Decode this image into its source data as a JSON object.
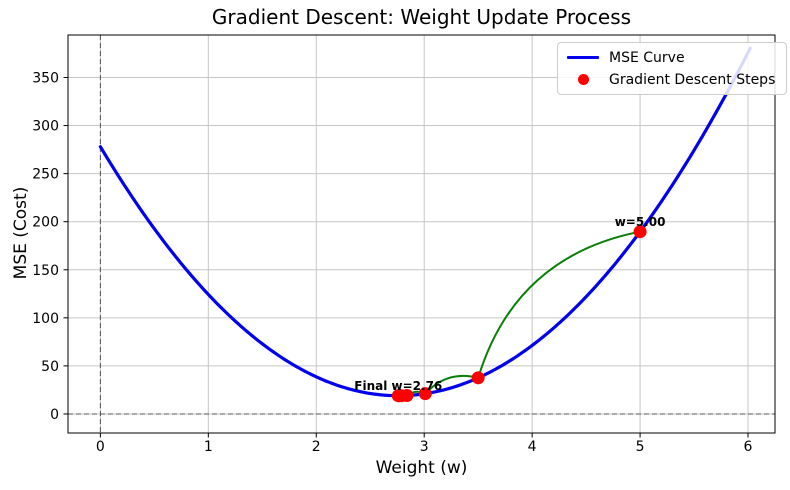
{
  "chart_data": {
    "type": "line",
    "title": "Gradient Descent: Weight Update Process",
    "xlabel": "Weight (w)",
    "ylabel": "MSE (Cost)",
    "xlim": [
      -0.3,
      6.25
    ],
    "ylim": [
      -19.8,
      394.2
    ],
    "x_ticks": [
      0,
      1,
      2,
      3,
      4,
      5,
      6
    ],
    "y_ticks": [
      0,
      50,
      100,
      150,
      200,
      250,
      300,
      350
    ],
    "grid": true,
    "grid_color": "#c6c6c6",
    "zero_line_color": "#555555",
    "curve": {
      "label": "MSE Curve",
      "color": "#0000ee",
      "a": 34,
      "vertex_w": 2.76,
      "min_mse": 19,
      "w_start": 0,
      "w_end": 6.02
    },
    "steps": {
      "label": "Gradient Descent Steps",
      "color": "#ff0000",
      "w": [
        5.0,
        3.5,
        3.01,
        2.84,
        2.79,
        2.77,
        2.76
      ],
      "mse": [
        189.6,
        37.6,
        21.1,
        19.2,
        19.0,
        19.0,
        19.0
      ]
    },
    "step_path": {
      "color": "#088008",
      "rad": 0.3
    },
    "annotations": [
      {
        "text": "w=5.00",
        "w": 5.0,
        "mse": 189.6
      },
      {
        "text": "Final w=2.76",
        "w": 2.76,
        "mse": 19.0
      }
    ],
    "legend": {
      "position": "upper right",
      "entries": [
        {
          "label": "MSE Curve",
          "type": "line",
          "color": "#0000ee"
        },
        {
          "label": "Gradient Descent Steps",
          "type": "dot",
          "color": "#ff0000"
        }
      ]
    }
  }
}
